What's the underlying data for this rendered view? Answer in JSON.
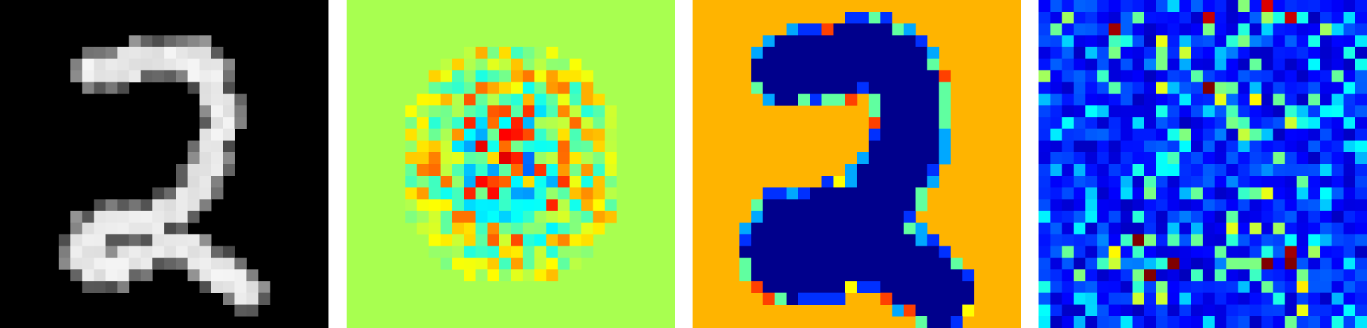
{
  "figure": {
    "panels": [
      {
        "id": "input-digit",
        "colormap": "gray",
        "background": "#000000"
      },
      {
        "id": "attribution-map",
        "colormap": "jet",
        "background": "#a8ff50"
      },
      {
        "id": "binary-mask",
        "colormap": "jet",
        "background": "#ffb400"
      },
      {
        "id": "noise-map",
        "colormap": "jet",
        "background": "#0000a8"
      }
    ],
    "palette": {
      "dark_red": "#800000",
      "red": "#ff2000",
      "orange": "#ff8000",
      "amber": "#ffb400",
      "yellow": "#ffff00",
      "yellow_green": "#d0ff30",
      "light_green": "#a8ff50",
      "cyan": "#20ffd0",
      "sky": "#00a8ff",
      "blue": "#0030ff",
      "navy": "#00008c"
    }
  }
}
